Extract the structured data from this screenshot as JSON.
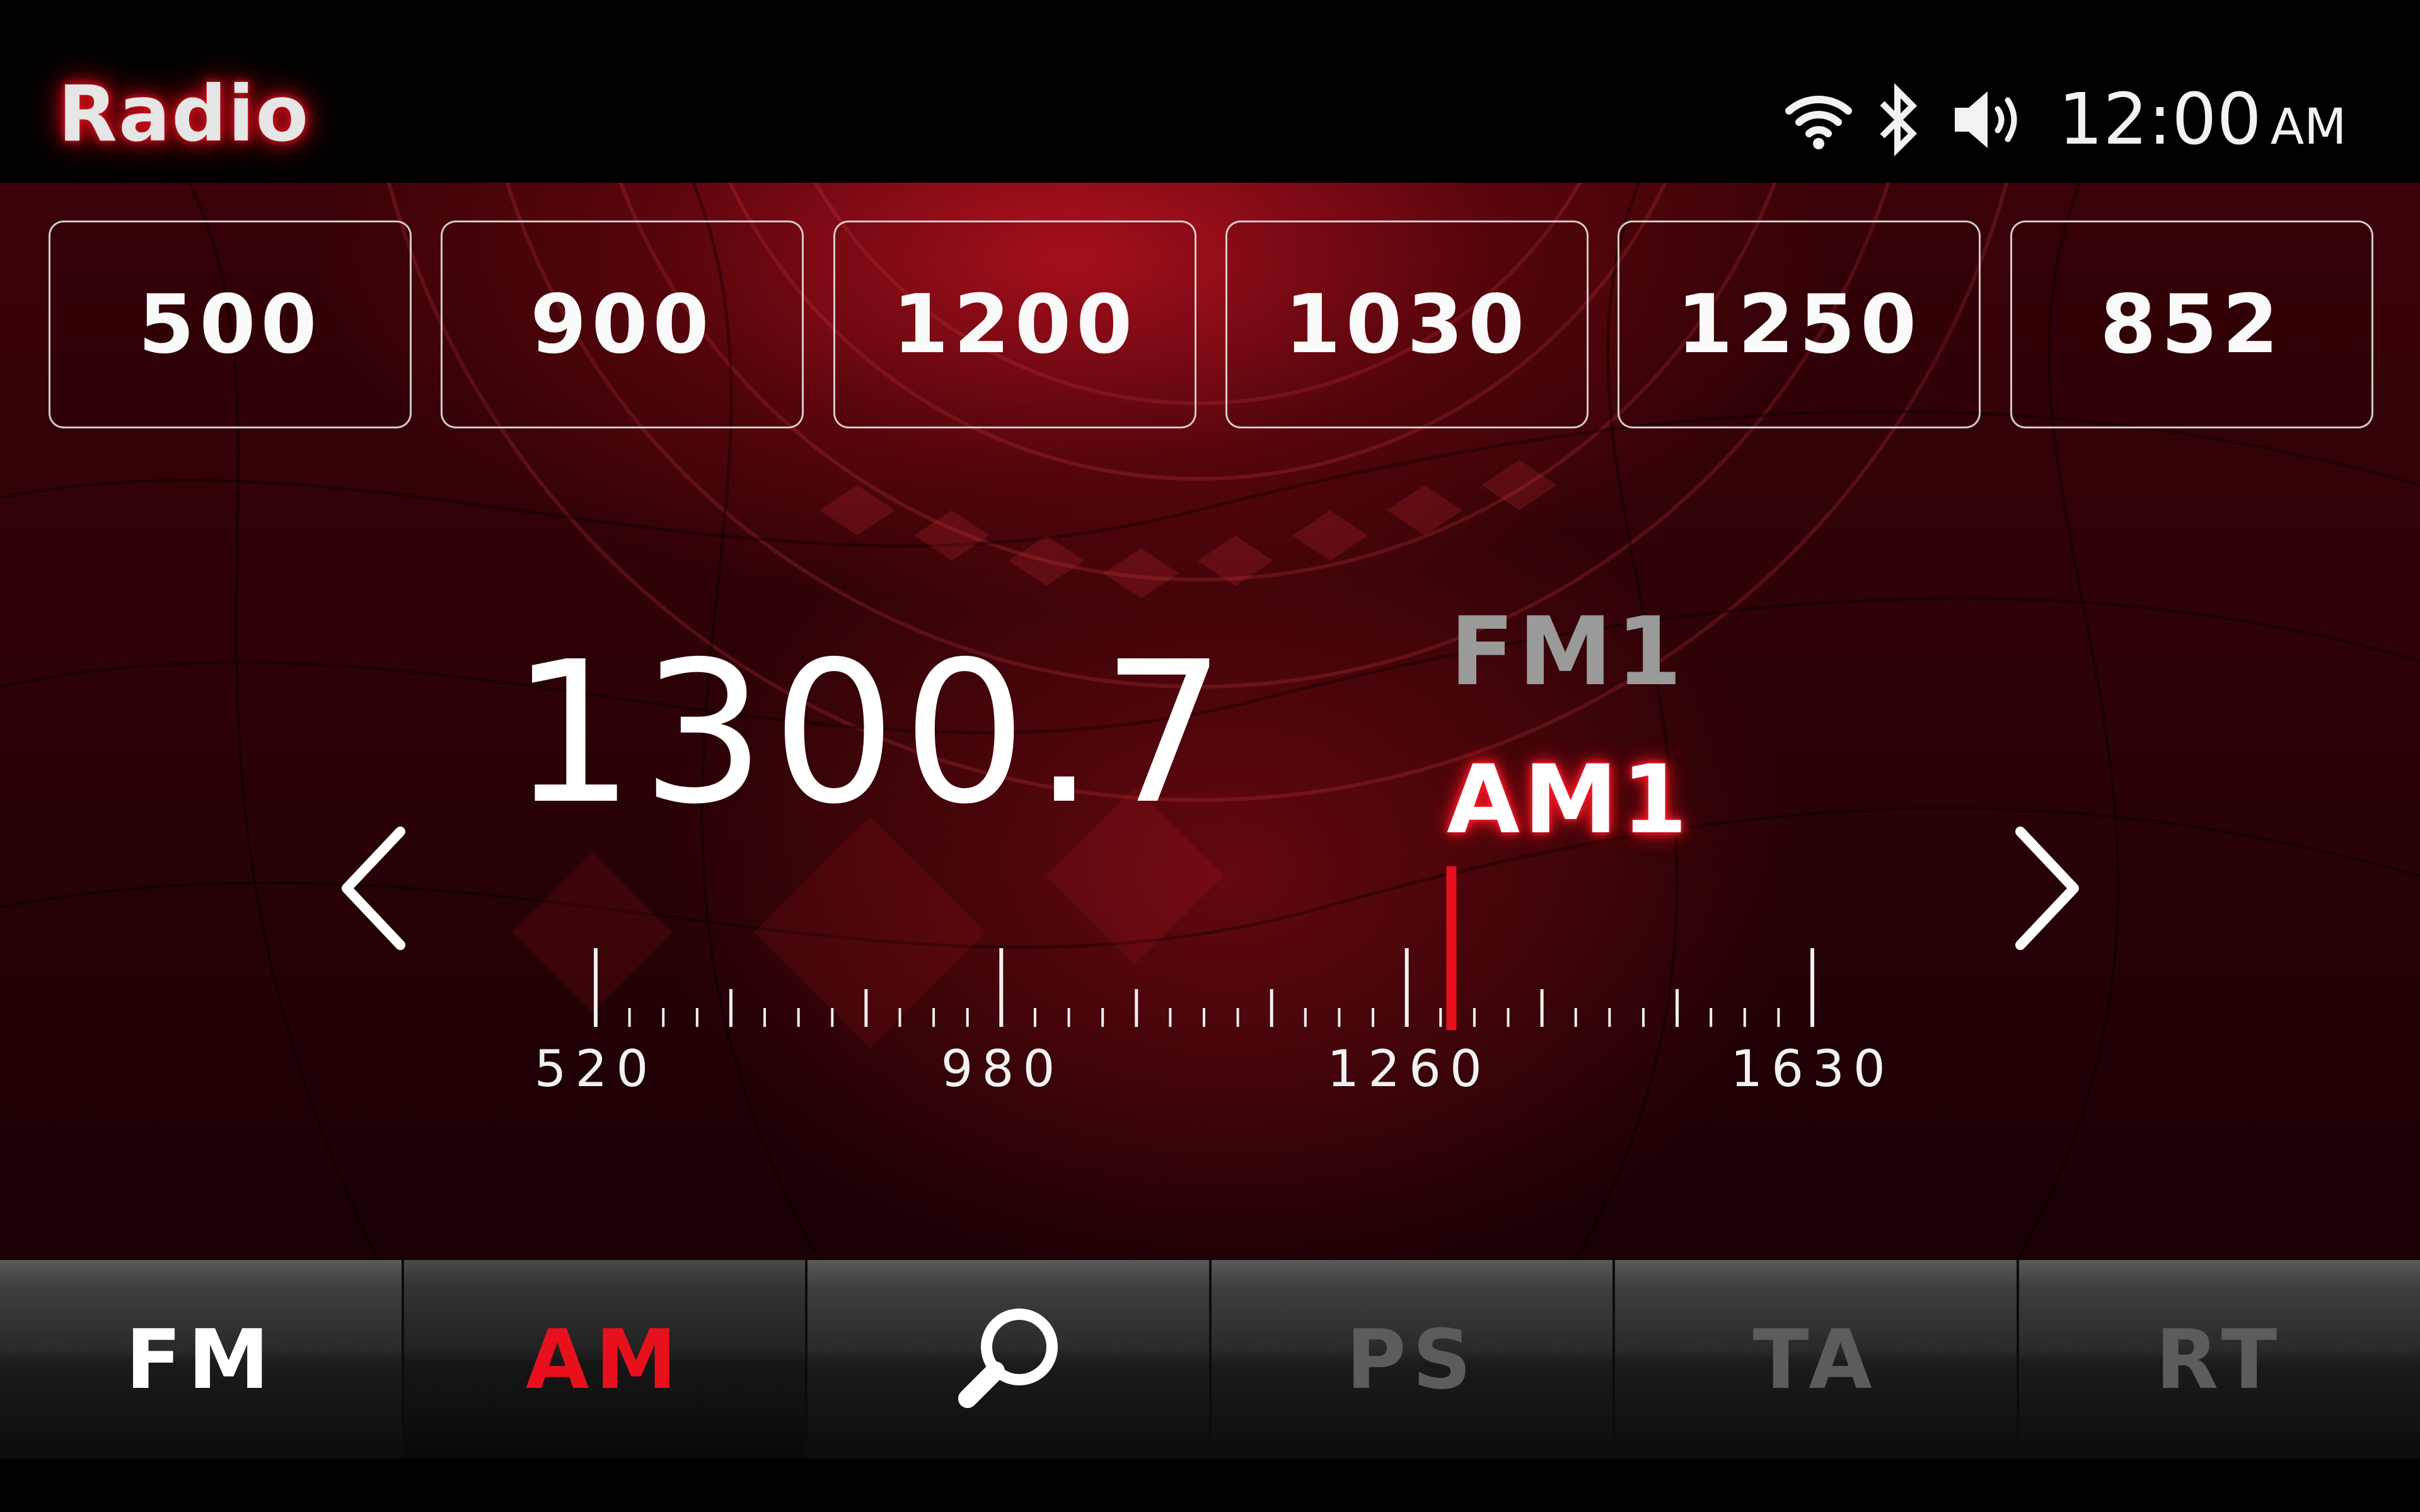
{
  "header": {
    "title": "Radio",
    "status_icons": [
      "wifi-icon",
      "bluetooth-icon",
      "volume-icon"
    ],
    "clock": {
      "time": "12:00",
      "ampm": "AM"
    }
  },
  "presets": [
    {
      "label": "500"
    },
    {
      "label": "900"
    },
    {
      "label": "1200"
    },
    {
      "label": "1030"
    },
    {
      "label": "1250"
    },
    {
      "label": "852"
    }
  ],
  "tuner": {
    "frequency": "1300.7",
    "bands": {
      "inactive": "FM1",
      "active": "AM1"
    },
    "scale": {
      "min": 520,
      "max": 1630,
      "labels": [
        "520",
        "980",
        "1260",
        "1630"
      ],
      "current": 1300.7
    },
    "prev_icon": "chevron-left-icon",
    "next_icon": "chevron-right-icon"
  },
  "bottom_bar": {
    "items": [
      {
        "label": "FM",
        "state": "normal"
      },
      {
        "label": "AM",
        "state": "active"
      },
      {
        "label": "",
        "icon": "search-icon",
        "state": "normal"
      },
      {
        "label": "PS",
        "state": "disabled"
      },
      {
        "label": "TA",
        "state": "disabled"
      },
      {
        "label": "RT",
        "state": "disabled"
      }
    ]
  },
  "colors": {
    "accent": "#e8101c",
    "disabled": "#5c5c5c",
    "text": "#ffffff"
  }
}
